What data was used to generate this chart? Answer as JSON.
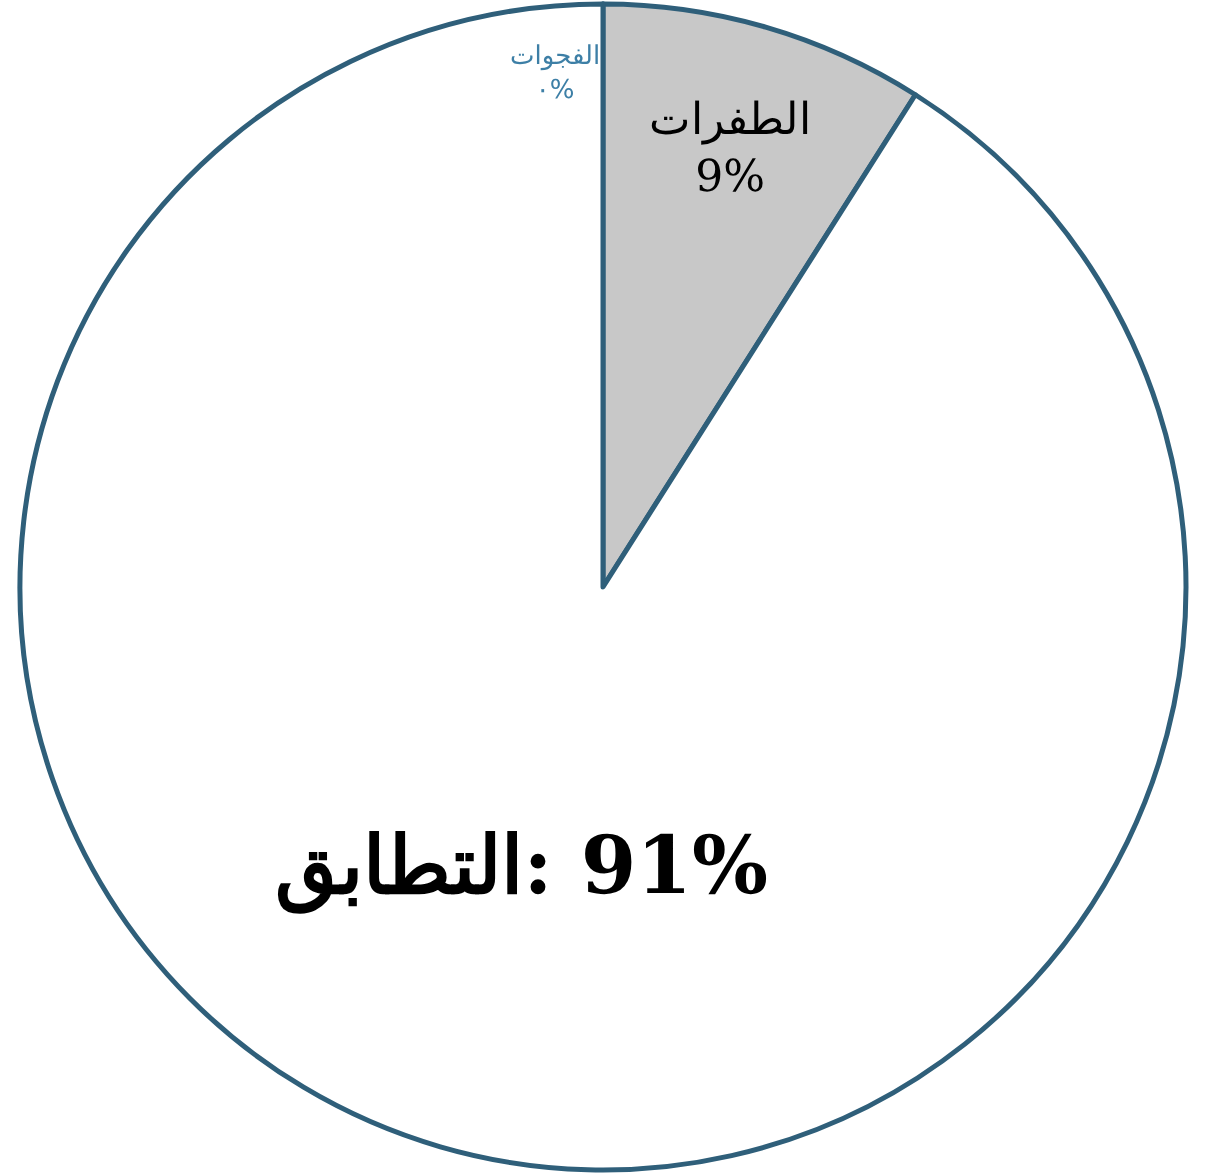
{
  "chart_data": {
    "type": "pie",
    "categories": [
      "الفجوات",
      "الطفرات",
      "التطابق"
    ],
    "values": [
      0,
      9,
      91
    ],
    "value_labels": [
      "٠%",
      "9%",
      "91%"
    ],
    "colors": [
      "#ffffff",
      "#c8c8c8",
      "#ffffff"
    ]
  }
}
